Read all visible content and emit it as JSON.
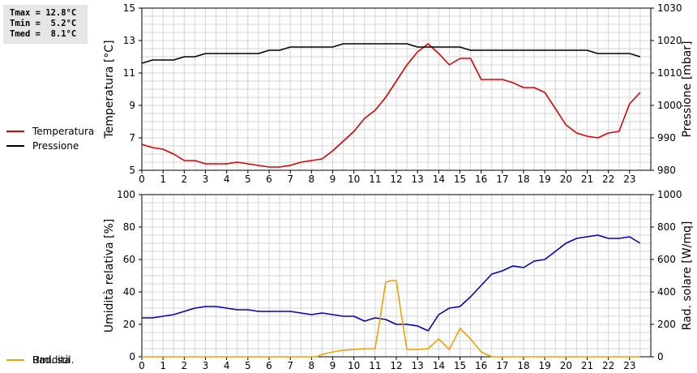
{
  "stats": {
    "tmax": "Tmax = 12.8°C",
    "tmin": "Tmin =  5.2°C",
    "tmed": "Tmed =  8.1°C"
  },
  "colors": {
    "temperature": "#dd0000",
    "pressure": "#000000",
    "humidity": "#0000bb",
    "solar": "#f2a000",
    "grid": "#d4d4d4"
  },
  "chart_data": [
    {
      "type": "line",
      "ylabel": "Temperatura [°C]",
      "y2label": "Pressione [mbar]",
      "ylim": [
        5,
        15
      ],
      "y2lim": [
        980,
        1030
      ],
      "xlim": [
        0,
        24
      ],
      "yticks": [
        5,
        7,
        9,
        11,
        13,
        15
      ],
      "y2ticks": [
        980,
        990,
        1000,
        1010,
        1020,
        1030
      ],
      "xticks": [
        0,
        1,
        2,
        3,
        4,
        5,
        6,
        7,
        8,
        9,
        10,
        11,
        12,
        13,
        14,
        15,
        16,
        17,
        18,
        19,
        20,
        21,
        22,
        23
      ],
      "grid": true,
      "series": [
        {
          "name": "Temperatura",
          "axis": "left",
          "color": "#dd0000",
          "x": [
            0,
            0.5,
            1,
            1.5,
            2,
            2.5,
            3,
            3.5,
            4,
            4.5,
            5,
            5.5,
            6,
            6.5,
            7,
            7.5,
            8,
            8.5,
            9,
            9.5,
            10,
            10.5,
            11,
            11.5,
            12,
            12.5,
            13,
            13.5,
            14,
            14.5,
            15,
            15.5,
            16,
            16.5,
            17,
            17.5,
            18,
            18.5,
            19,
            19.5,
            20,
            20.5,
            21,
            21.5,
            22,
            22.5,
            23,
            23.5
          ],
          "values": [
            6.6,
            6.4,
            6.3,
            6.0,
            5.6,
            5.6,
            5.4,
            5.4,
            5.4,
            5.5,
            5.4,
            5.3,
            5.2,
            5.2,
            5.3,
            5.5,
            5.6,
            5.7,
            6.2,
            6.8,
            7.4,
            8.2,
            8.7,
            9.5,
            10.5,
            11.5,
            12.3,
            12.8,
            12.2,
            11.5,
            11.9,
            11.9,
            10.6,
            10.6,
            10.6,
            10.4,
            10.1,
            10.1,
            9.8,
            8.8,
            7.8,
            7.3,
            7.1,
            7.0,
            7.3,
            7.4,
            9.1,
            9.8
          ]
        },
        {
          "name": "Pressione",
          "axis": "right",
          "color": "#000000",
          "x": [
            0,
            0.5,
            1,
            1.5,
            2,
            2.5,
            3,
            3.5,
            4,
            4.5,
            5,
            5.5,
            6,
            6.5,
            7,
            7.5,
            8,
            8.5,
            9,
            9.5,
            10,
            10.5,
            11,
            11.5,
            12,
            12.5,
            13,
            13.5,
            14,
            14.5,
            15,
            15.5,
            16,
            16.5,
            17,
            17.5,
            18,
            18.5,
            19,
            19.5,
            20,
            20.5,
            21,
            21.5,
            22,
            22.5,
            23,
            23.5
          ],
          "values": [
            1013,
            1014,
            1014,
            1014,
            1015,
            1015,
            1016,
            1016,
            1016,
            1016,
            1016,
            1016,
            1017,
            1017,
            1018,
            1018,
            1018,
            1018,
            1018,
            1019,
            1019,
            1019,
            1019,
            1019,
            1019,
            1019,
            1018,
            1018,
            1018,
            1018,
            1018,
            1017,
            1017,
            1017,
            1017,
            1017,
            1017,
            1017,
            1017,
            1017,
            1017,
            1017,
            1017,
            1016,
            1016,
            1016,
            1016,
            1015
          ]
        }
      ]
    },
    {
      "type": "line",
      "ylabel": "Umidità relativa [%]",
      "y2label": "Rad. solare [W/mq]",
      "ylim": [
        0,
        100
      ],
      "y2lim": [
        0,
        1000
      ],
      "xlim": [
        0,
        24
      ],
      "yticks": [
        0,
        20,
        40,
        60,
        80,
        100
      ],
      "y2ticks": [
        0,
        200,
        400,
        600,
        800,
        1000
      ],
      "xticks": [
        0,
        1,
        2,
        3,
        4,
        5,
        6,
        7,
        8,
        9,
        10,
        11,
        12,
        13,
        14,
        15,
        16,
        17,
        18,
        19,
        20,
        21,
        22,
        23
      ],
      "grid": true,
      "series": [
        {
          "name": "Umidità",
          "axis": "left",
          "color": "#0000bb",
          "x": [
            0,
            0.5,
            1,
            1.5,
            2,
            2.5,
            3,
            3.5,
            4,
            4.5,
            5,
            5.5,
            6,
            6.5,
            7,
            7.5,
            8,
            8.5,
            9,
            9.5,
            10,
            10.5,
            11,
            11.5,
            12,
            12.5,
            13,
            13.5,
            14,
            14.5,
            15,
            15.5,
            16,
            16.5,
            17,
            17.5,
            18,
            18.5,
            19,
            19.5,
            20,
            20.5,
            21,
            21.5,
            22,
            22.5,
            23,
            23.5
          ],
          "values": [
            24,
            24,
            25,
            26,
            28,
            30,
            31,
            31,
            30,
            29,
            29,
            28,
            28,
            28,
            28,
            27,
            26,
            27,
            26,
            25,
            25,
            22,
            24,
            23,
            20,
            20,
            19,
            16,
            26,
            30,
            31,
            37,
            44,
            51,
            53,
            56,
            55,
            59,
            60,
            65,
            70,
            73,
            74,
            75,
            73,
            73,
            74,
            70
          ]
        },
        {
          "name": "Rad. sol.",
          "axis": "right",
          "color": "#f2a000",
          "x": [
            0,
            1,
            2,
            3,
            4,
            5,
            6,
            7,
            8,
            8.25,
            8.5,
            9,
            9.5,
            10,
            10.5,
            11,
            11.25,
            11.5,
            11.75,
            12,
            12.25,
            12.5,
            13,
            13.5,
            14,
            14.5,
            15,
            15.5,
            16,
            16.5,
            17,
            18,
            19,
            20,
            21,
            22,
            23,
            23.5
          ],
          "values": [
            0,
            0,
            0,
            0,
            0,
            0,
            0,
            0,
            0,
            0,
            15,
            30,
            40,
            45,
            50,
            50,
            250,
            460,
            470,
            470,
            250,
            45,
            45,
            50,
            110,
            45,
            175,
            110,
            30,
            0,
            0,
            0,
            0,
            0,
            0,
            0,
            0,
            0
          ]
        }
      ]
    }
  ]
}
